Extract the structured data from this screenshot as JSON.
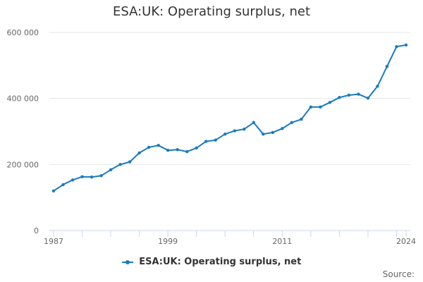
{
  "title": "ESA:UK: Operating surplus, net",
  "legend": {
    "label": "ESA:UK: Operating surplus, net",
    "color": "#1a7abf"
  },
  "source_label": "Source:",
  "y_ticks": [
    "0",
    "200 000",
    "400 000",
    "600 000"
  ],
  "x_ticks": [
    "1987",
    "1999",
    "2011",
    "2024"
  ],
  "chart_data": {
    "type": "line",
    "title": "ESA:UK: Operating surplus, net",
    "xlabel": "",
    "ylabel": "",
    "ylim": [
      0,
      600000
    ],
    "grid": true,
    "legend_position": "bottom",
    "x": [
      1987,
      1988,
      1989,
      1990,
      1991,
      1992,
      1993,
      1994,
      1995,
      1996,
      1997,
      1998,
      1999,
      2000,
      2001,
      2002,
      2003,
      2004,
      2005,
      2006,
      2007,
      2008,
      2009,
      2010,
      2011,
      2012,
      2013,
      2014,
      2015,
      2016,
      2017,
      2018,
      2019,
      2020,
      2021,
      2022,
      2023,
      2024
    ],
    "series": [
      {
        "name": "ESA:UK: Operating surplus, net",
        "color": "#1a7abf",
        "values": [
          120000,
          139000,
          153000,
          163000,
          162000,
          166000,
          184000,
          200000,
          208000,
          235000,
          252000,
          258000,
          243000,
          245000,
          239000,
          250000,
          270000,
          274000,
          292000,
          302000,
          307000,
          327000,
          292000,
          297000,
          309000,
          327000,
          337000,
          374000,
          374000,
          388000,
          403000,
          410000,
          413000,
          401000,
          437000,
          497000,
          557000,
          562000
        ]
      }
    ],
    "x_tick_labels": [
      "1987",
      "1999",
      "2011",
      "2024"
    ],
    "y_tick_labels": [
      "0",
      "200 000",
      "400 000",
      "600 000"
    ]
  }
}
